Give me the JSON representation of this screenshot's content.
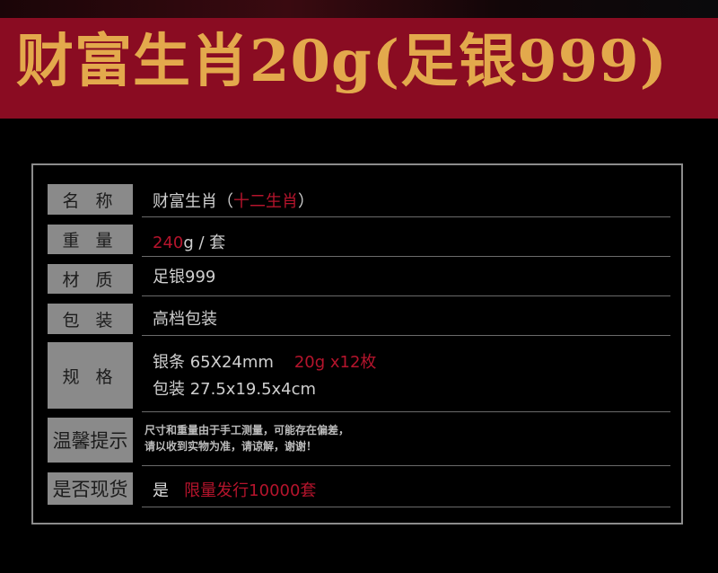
{
  "title": "财富生肖20g(足银999)",
  "colors": {
    "band": "#8a0c22",
    "title": "#e3a94c",
    "accent_red": "#b5142c",
    "label_bg": "#8a8a8a"
  },
  "rows": [
    {
      "label": "名 称",
      "value": "财富生肖（",
      "value_red": "十二生肖",
      "value_end": "）"
    },
    {
      "label": "重 量",
      "value_red": "240",
      "value": "g / 套"
    },
    {
      "label": "材 质",
      "value": "足银999"
    },
    {
      "label": "包 装",
      "value": "高档包装"
    },
    {
      "label": "规 格",
      "line1": "银条 65X24mm",
      "line1_red": "20g x12枚",
      "line2": "包装 27.5x19.5x4cm"
    },
    {
      "label": "温馨提示",
      "line1": "尺寸和重量由于手工测量，可能存在偏差，",
      "line2": "请以收到实物为准，请谅解，谢谢！"
    },
    {
      "label": "是否现货",
      "value": "是",
      "value_red": "限量发行10000套"
    }
  ]
}
